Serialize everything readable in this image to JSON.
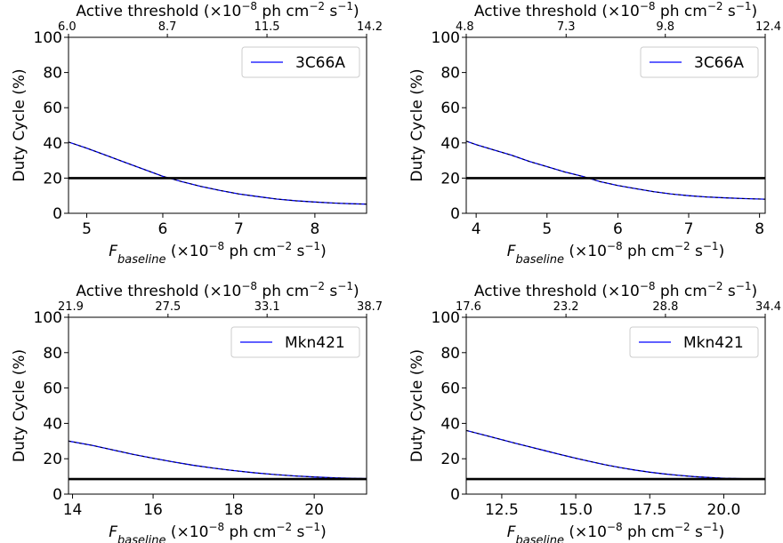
{
  "chart_data": [
    {
      "type": "line",
      "ylabel": "Duty Cycle (%)",
      "xlabel": "F",
      "xlabel_sub": "baseline",
      "xlabel_units": " (×10",
      "xlabel_exp1": "−8",
      "xlabel_units2": " ph cm",
      "xlabel_exp2": "−2",
      "xlabel_units3": " s",
      "xlabel_exp3": "−1",
      "xlabel_close": ")",
      "top_label": "Active threshold (×10",
      "top_exp1": "−8",
      "top_units2": " ph cm",
      "top_exp2": "−2",
      "top_units3": " s",
      "top_exp3": "−1",
      "top_close": ")",
      "xlim": [
        4.76,
        8.68
      ],
      "ylim": [
        0,
        100
      ],
      "x_ticks": [
        5,
        6,
        7,
        8
      ],
      "x_tick_labels": [
        "5",
        "6",
        "7",
        "8"
      ],
      "y_ticks": [
        0,
        20,
        40,
        60,
        80,
        100
      ],
      "y_tick_labels": [
        "0",
        "20",
        "40",
        "60",
        "80",
        "100"
      ],
      "top_ticks": [
        4.76,
        6.06,
        7.37,
        8.68
      ],
      "top_tick_labels": [
        "6.0",
        "8.7",
        "11.5",
        "14.2"
      ],
      "legend_position": "top-right",
      "series": [
        {
          "name": "3C66A",
          "color": "#0000ff",
          "x": [
            4.76,
            5.0,
            5.25,
            5.5,
            5.75,
            6.0,
            6.25,
            6.5,
            6.75,
            7.0,
            7.25,
            7.5,
            7.75,
            8.0,
            8.25,
            8.5,
            8.68
          ],
          "y": [
            40.5,
            37.0,
            33.0,
            29.0,
            25.0,
            21.0,
            18.0,
            15.3,
            13.0,
            11.0,
            9.5,
            8.1,
            7.1,
            6.4,
            5.8,
            5.4,
            5.2
          ]
        }
      ],
      "hline": {
        "y": 20,
        "color": "#000000"
      }
    },
    {
      "type": "line",
      "ylabel": "Duty Cycle (%)",
      "xlabel": "F",
      "xlabel_sub": "baseline",
      "xlabel_units": " (×10",
      "xlabel_exp1": "−8",
      "xlabel_units2": " ph cm",
      "xlabel_exp2": "−2",
      "xlabel_units3": " s",
      "xlabel_exp3": "−1",
      "xlabel_close": ")",
      "top_label": "Active threshold (×10",
      "top_exp1": "−8",
      "top_units2": " ph cm",
      "top_exp2": "−2",
      "top_units3": " s",
      "top_exp3": "−1",
      "top_close": ")",
      "xlim": [
        3.86,
        8.08
      ],
      "ylim": [
        0,
        100
      ],
      "x_ticks": [
        4,
        5,
        6,
        7,
        8
      ],
      "x_tick_labels": [
        "4",
        "5",
        "6",
        "7",
        "8"
      ],
      "y_ticks": [
        0,
        20,
        40,
        60,
        80,
        100
      ],
      "y_tick_labels": [
        "0",
        "20",
        "40",
        "60",
        "80",
        "100"
      ],
      "top_ticks": [
        3.86,
        5.27,
        6.67,
        8.08
      ],
      "top_tick_labels": [
        "4.8",
        "7.3",
        "9.8",
        "12.4"
      ],
      "legend_position": "top-right",
      "series": [
        {
          "name": "3C66A",
          "color": "#0000ff",
          "x": [
            3.86,
            4.0,
            4.25,
            4.5,
            4.75,
            5.0,
            5.25,
            5.5,
            5.75,
            6.0,
            6.25,
            6.5,
            6.75,
            7.0,
            7.25,
            7.5,
            7.75,
            8.08
          ],
          "y": [
            41.0,
            39.0,
            36.0,
            33.0,
            29.5,
            26.5,
            23.5,
            21.0,
            18.0,
            15.8,
            14.0,
            12.3,
            11.0,
            10.0,
            9.3,
            8.8,
            8.4,
            8.0
          ]
        }
      ],
      "hline": {
        "y": 20,
        "color": "#000000"
      }
    },
    {
      "type": "line",
      "ylabel": "Duty Cycle (%)",
      "xlabel": "F",
      "xlabel_sub": "baseline",
      "xlabel_units": " (×10",
      "xlabel_exp1": "−8",
      "xlabel_units2": " ph cm",
      "xlabel_exp2": "−2",
      "xlabel_units3": " s",
      "xlabel_exp3": "−1",
      "xlabel_close": ")",
      "top_label": "Active threshold (×10",
      "top_exp1": "−8",
      "top_units2": " ph cm",
      "top_exp2": "−2",
      "top_units3": " s",
      "top_exp3": "−1",
      "top_close": ")",
      "xlim": [
        13.9,
        21.3
      ],
      "ylim": [
        0,
        100
      ],
      "x_ticks": [
        14,
        16,
        18,
        20
      ],
      "x_tick_labels": [
        "14",
        "16",
        "18",
        "20"
      ],
      "y_ticks": [
        0,
        20,
        40,
        60,
        80,
        100
      ],
      "y_tick_labels": [
        "0",
        "20",
        "40",
        "60",
        "80",
        "100"
      ],
      "top_ticks": [
        13.9,
        16.37,
        18.83,
        21.3
      ],
      "top_tick_labels": [
        "21.9",
        "27.5",
        "33.1",
        "38.7"
      ],
      "legend_position": "top-right",
      "series": [
        {
          "name": "Mkn421",
          "color": "#0000ff",
          "x": [
            13.9,
            14.5,
            15.0,
            15.5,
            16.0,
            16.5,
            17.0,
            17.5,
            18.0,
            18.5,
            19.0,
            19.5,
            20.0,
            20.5,
            21.0,
            21.3
          ],
          "y": [
            30.0,
            27.5,
            25.0,
            22.5,
            20.3,
            18.2,
            16.3,
            14.7,
            13.3,
            12.1,
            11.1,
            10.3,
            9.7,
            9.2,
            8.9,
            8.8
          ]
        }
      ],
      "hline": {
        "y": 8.5,
        "color": "#000000"
      }
    },
    {
      "type": "line",
      "ylabel": "Duty Cycle (%)",
      "xlabel": "F",
      "xlabel_sub": "baseline",
      "xlabel_units": " (×10",
      "xlabel_exp1": "−8",
      "xlabel_units2": " ph cm",
      "xlabel_exp2": "−2",
      "xlabel_units3": " s",
      "xlabel_exp3": "−1",
      "xlabel_close": ")",
      "top_label": "Active threshold (×10",
      "top_exp1": "−8",
      "top_units2": " ph cm",
      "top_exp2": "−2",
      "top_units3": " s",
      "top_exp3": "−1",
      "top_close": ")",
      "xlim": [
        11.3,
        21.4
      ],
      "ylim": [
        0,
        100
      ],
      "x_ticks": [
        12.5,
        15.0,
        17.5,
        20.0
      ],
      "x_tick_labels": [
        "12.5",
        "15.0",
        "17.5",
        "20.0"
      ],
      "y_ticks": [
        0,
        20,
        40,
        60,
        80,
        100
      ],
      "y_tick_labels": [
        "0",
        "20",
        "40",
        "60",
        "80",
        "100"
      ],
      "top_ticks": [
        11.3,
        14.67,
        18.03,
        21.4
      ],
      "top_tick_labels": [
        "17.6",
        "23.2",
        "28.8",
        "34.4"
      ],
      "legend_position": "top-right",
      "series": [
        {
          "name": "Mkn421",
          "color": "#0000ff",
          "x": [
            11.3,
            12.0,
            12.5,
            13.0,
            13.5,
            14.0,
            14.5,
            15.0,
            15.5,
            16.0,
            16.5,
            17.0,
            17.5,
            18.0,
            18.5,
            19.0,
            19.5,
            20.0,
            20.5,
            21.0,
            21.4
          ],
          "y": [
            36.0,
            33.0,
            30.8,
            28.6,
            26.5,
            24.4,
            22.3,
            20.3,
            18.4,
            16.6,
            15.0,
            13.6,
            12.4,
            11.4,
            10.6,
            9.9,
            9.4,
            9.0,
            8.8,
            8.6,
            8.5
          ]
        }
      ],
      "hline": {
        "y": 8.5,
        "color": "#000000"
      }
    }
  ]
}
